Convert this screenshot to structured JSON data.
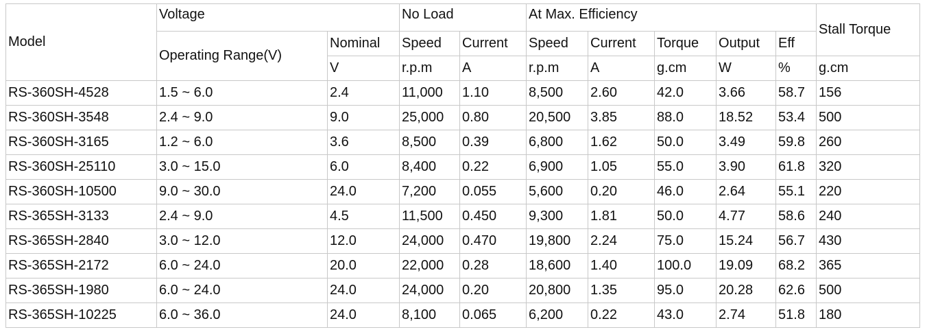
{
  "table": {
    "header": {
      "model": "Model",
      "voltage": "Voltage",
      "no_load": "No Load",
      "max_eff": "At Max. Efficiency",
      "stall": "Stall Torque",
      "operating_range": "Operating Range(V)",
      "nominal": "Nominal",
      "nl_speed": "Speed",
      "nl_current": "Current",
      "me_speed": "Speed",
      "me_current": "Current",
      "torque": "Torque",
      "output": "Output",
      "eff": "Eff",
      "units": [
        "V",
        "r.p.m",
        "A",
        "r.p.m",
        "A",
        "g.cm",
        "W",
        "%",
        "g.cm"
      ]
    },
    "rows": [
      [
        "RS-360SH-4528",
        "1.5 ~ 6.0",
        "2.4",
        "11,000",
        "1.10",
        "8,500",
        "2.60",
        "42.0",
        "3.66",
        "58.7",
        "156"
      ],
      [
        "RS-360SH-3548",
        "2.4 ~ 9.0",
        "9.0",
        "25,000",
        "0.80",
        "20,500",
        "3.85",
        "88.0",
        "18.52",
        "53.4",
        "500"
      ],
      [
        "RS-360SH-3165",
        "1.2 ~ 6.0",
        "3.6",
        "8,500",
        "0.39",
        "6,800",
        "1.62",
        "50.0",
        "3.49",
        "59.8",
        "260"
      ],
      [
        "RS-360SH-25110",
        "3.0 ~ 15.0",
        "6.0",
        "8,400",
        "0.22",
        "6,900",
        "1.05",
        "55.0",
        "3.90",
        "61.8",
        "320"
      ],
      [
        "RS-360SH-10500",
        "9.0 ~ 30.0",
        "24.0",
        "7,200",
        "0.055",
        "5,600",
        "0.20",
        "46.0",
        "2.64",
        "55.1",
        "220"
      ],
      [
        "RS-365SH-3133",
        "2.4 ~ 9.0",
        "4.5",
        "11,500",
        "0.450",
        "9,300",
        "1.81",
        "50.0",
        "4.77",
        "58.6",
        "240"
      ],
      [
        "RS-365SH-2840",
        "3.0 ~ 12.0",
        "12.0",
        "24,000",
        "0.470",
        "19,800",
        "2.24",
        "75.0",
        "15.24",
        "56.7",
        "430"
      ],
      [
        "RS-365SH-2172",
        "6.0 ~ 24.0",
        "20.0",
        "22,000",
        "0.28",
        "18,600",
        "1.40",
        "100.0",
        "19.09",
        "68.2",
        "365"
      ],
      [
        "RS-365SH-1980",
        "6.0 ~ 24.0",
        "24.0",
        "24,000",
        "0.20",
        "20,800",
        "1.35",
        "95.0",
        "20.28",
        "62.6",
        "500"
      ],
      [
        "RS-365SH-10225",
        "6.0 ~ 36.0",
        "24.0",
        "8,100",
        "0.065",
        "6,200",
        "0.22",
        "43.0",
        "2.74",
        "51.8",
        "180"
      ]
    ]
  }
}
